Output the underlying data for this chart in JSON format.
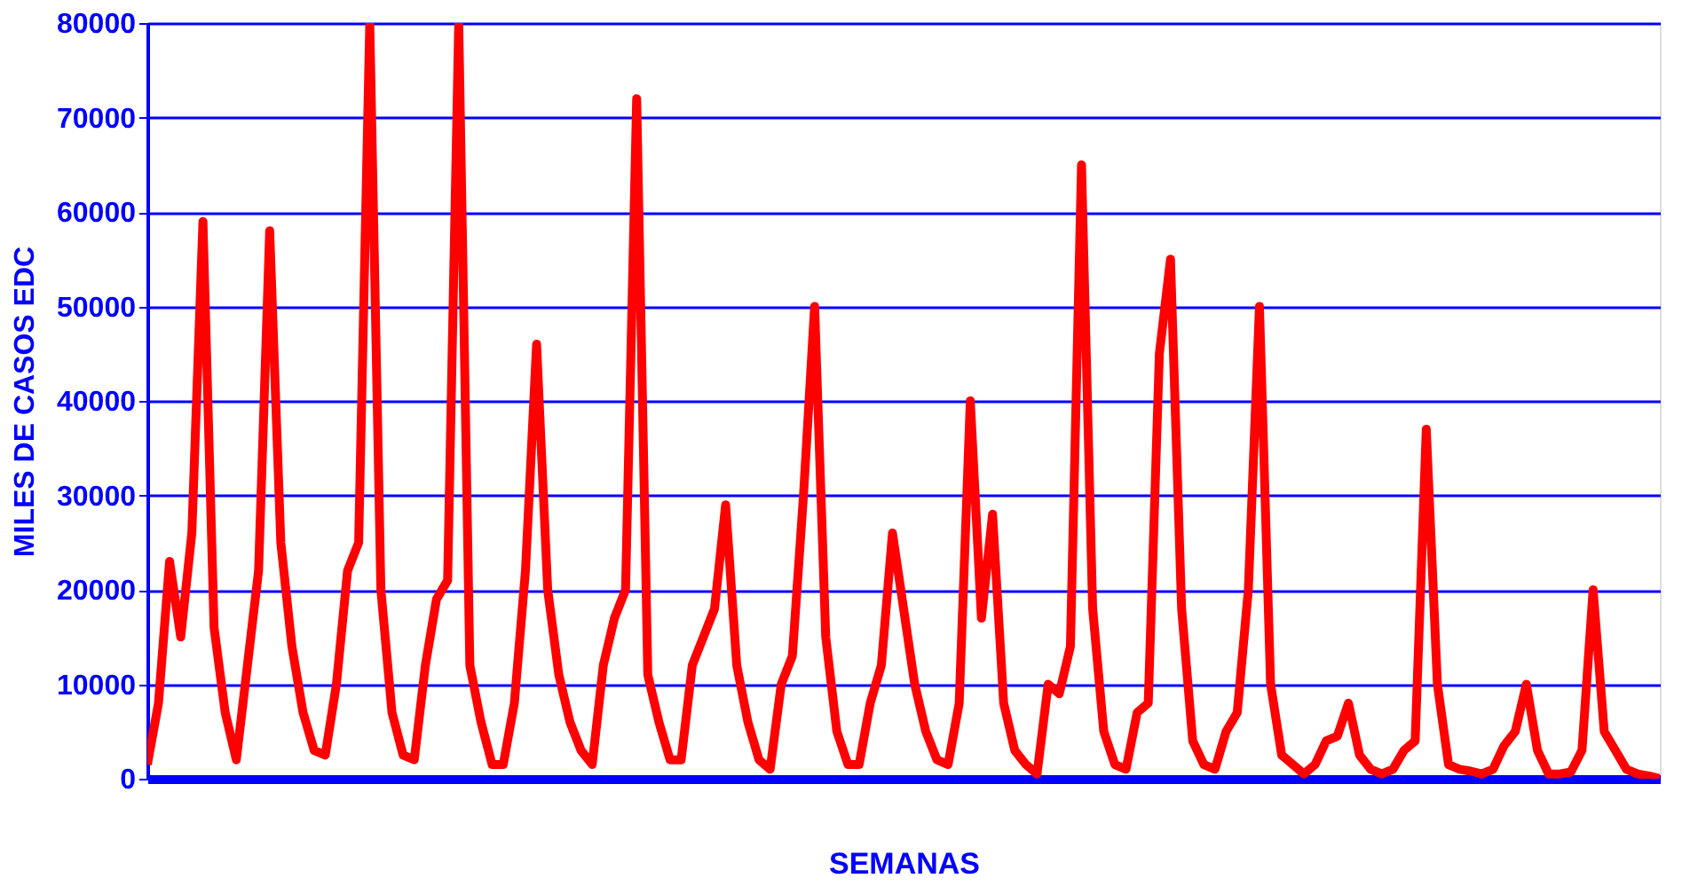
{
  "chart_data": {
    "type": "line",
    "xlabel": "SEMANAS",
    "ylabel": "MILES DE CASOS EDC",
    "categories": [
      null,
      null,
      null,
      null,
      null,
      null,
      null,
      null,
      null,
      null,
      null,
      null,
      null,
      null,
      null,
      null,
      null,
      null,
      null,
      null,
      null,
      null,
      null,
      null,
      null,
      null,
      null,
      null,
      null,
      null,
      null,
      null,
      null,
      null,
      null,
      null,
      null,
      null,
      null,
      null,
      null,
      null,
      null,
      null,
      null,
      null,
      null,
      null,
      null,
      null,
      null,
      null,
      null,
      null,
      null,
      null,
      null,
      null,
      null,
      null,
      null,
      null,
      null,
      null,
      null,
      null,
      null,
      null,
      null,
      null,
      null,
      null,
      null,
      null,
      null,
      null,
      null,
      null,
      null,
      null,
      null,
      null,
      null,
      null,
      null,
      null,
      null,
      null,
      null,
      null,
      null,
      null,
      null,
      null,
      null,
      null,
      null,
      null,
      null,
      null,
      null,
      null,
      null,
      null,
      null,
      null,
      null,
      null,
      null,
      null,
      null,
      null,
      null,
      null,
      null,
      null,
      null,
      null,
      null,
      null,
      null,
      null,
      null,
      null,
      null,
      null,
      null,
      null,
      null,
      null,
      null,
      null,
      null,
      null,
      null,
      null,
      null
    ],
    "series": [
      {
        "color": "#ff0000",
        "values": [
          1500,
          8000,
          23000,
          15000,
          26000,
          59000,
          16000,
          7000,
          2000,
          12000,
          22000,
          58000,
          25000,
          14000,
          7000,
          3000,
          2500,
          10000,
          22000,
          25000,
          80000,
          20000,
          7000,
          2500,
          2000,
          12000,
          19000,
          21000,
          80000,
          12000,
          6000,
          1500,
          1500,
          8000,
          22000,
          46000,
          20000,
          11000,
          6000,
          3000,
          1500,
          12000,
          17000,
          20000,
          72000,
          11000,
          6000,
          2000,
          2000,
          12000,
          15000,
          18000,
          29000,
          12000,
          6000,
          2000,
          1000,
          10000,
          13000,
          30000,
          50000,
          15000,
          5000,
          1500,
          1500,
          8000,
          12000,
          26000,
          18000,
          10000,
          5000,
          2000,
          1500,
          8000,
          40000,
          17000,
          28000,
          8000,
          3000,
          1500,
          500,
          10000,
          9000,
          14000,
          65000,
          18000,
          5000,
          1500,
          1000,
          7000,
          8000,
          45000,
          55000,
          18000,
          4000,
          1500,
          1000,
          5000,
          7000,
          20000,
          50000,
          10000,
          2500,
          1500,
          500,
          1500,
          4000,
          4500,
          8000,
          2500,
          1000,
          500,
          1000,
          3000,
          4000,
          37000,
          10000,
          1500,
          1000,
          800,
          500,
          1000,
          3500,
          5000,
          10000,
          3000,
          500,
          500,
          700,
          3000,
          20000,
          5000,
          3000,
          1000,
          500,
          300,
          0
        ]
      }
    ],
    "ylim": [
      0,
      80000
    ],
    "yticks": [
      0,
      10000,
      20000,
      30000,
      40000,
      50000,
      60000,
      70000,
      80000
    ],
    "grid": "y",
    "legend": false,
    "tick_labels": "y",
    "marker": "none",
    "line_style": "solid"
  }
}
